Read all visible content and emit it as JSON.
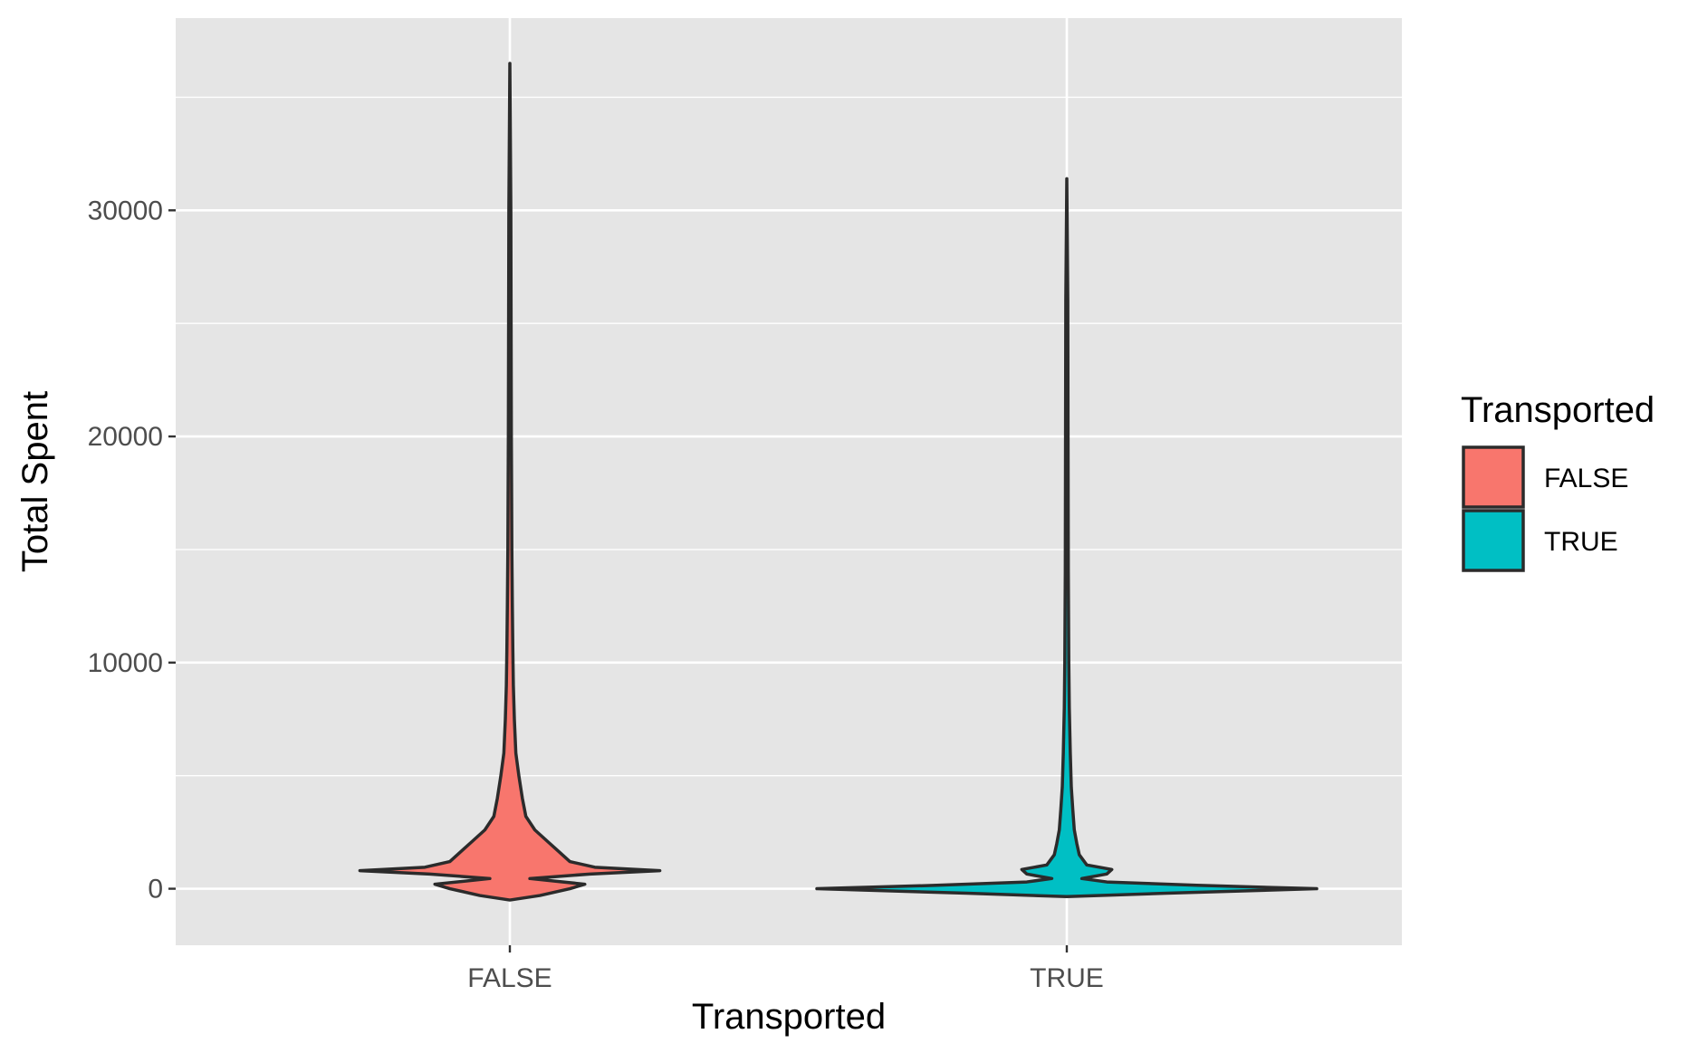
{
  "chart_data": {
    "type": "violin",
    "xlabel": "Transported",
    "ylabel": "Total Spent",
    "categories": [
      "FALSE",
      "TRUE"
    ],
    "ylim": [
      -2500,
      38500
    ],
    "yticks": [
      0,
      10000,
      20000,
      30000
    ],
    "ytick_labels": [
      "0",
      "10000",
      "20000",
      "30000"
    ],
    "grid": true,
    "legend": {
      "title": "Transported",
      "placement": "right",
      "entries": [
        "FALSE",
        "TRUE"
      ]
    },
    "colors": {
      "panel": "#e5e5e5",
      "grid": "#ffffff",
      "outline": "#2b2b2b",
      "FALSE": "#f8766d",
      "TRUE": "#00bfc4"
    },
    "series": [
      {
        "category": "FALSE",
        "range": [
          0,
          36500
        ],
        "density": [
          [
            -500,
            0.0
          ],
          [
            -300,
            0.06
          ],
          [
            0,
            0.12
          ],
          [
            200,
            0.15
          ],
          [
            450,
            0.04
          ],
          [
            650,
            0.16
          ],
          [
            800,
            0.3
          ],
          [
            950,
            0.17
          ],
          [
            1200,
            0.12
          ],
          [
            1600,
            0.1
          ],
          [
            2100,
            0.075
          ],
          [
            2600,
            0.05
          ],
          [
            3200,
            0.032
          ],
          [
            4000,
            0.025
          ],
          [
            5000,
            0.018
          ],
          [
            6000,
            0.012
          ],
          [
            7500,
            0.009
          ],
          [
            9000,
            0.007
          ],
          [
            10500,
            0.006
          ],
          [
            12500,
            0.005
          ],
          [
            15000,
            0.004
          ],
          [
            20000,
            0.003
          ],
          [
            25000,
            0.0025
          ],
          [
            30000,
            0.002
          ],
          [
            36500,
            0.0
          ]
        ]
      },
      {
        "category": "TRUE",
        "range": [
          0,
          31400
        ],
        "density": [
          [
            -350,
            0.0
          ],
          [
            -200,
            0.2
          ],
          [
            0,
            0.5
          ],
          [
            150,
            0.26
          ],
          [
            300,
            0.08
          ],
          [
            450,
            0.03
          ],
          [
            650,
            0.08
          ],
          [
            850,
            0.09
          ],
          [
            1050,
            0.04
          ],
          [
            1500,
            0.025
          ],
          [
            2000,
            0.02
          ],
          [
            2600,
            0.015
          ],
          [
            3500,
            0.012
          ],
          [
            4500,
            0.009
          ],
          [
            6000,
            0.007
          ],
          [
            8000,
            0.005
          ],
          [
            10000,
            0.004
          ],
          [
            14000,
            0.003
          ],
          [
            20000,
            0.0025
          ],
          [
            26000,
            0.002
          ],
          [
            31400,
            0.0
          ]
        ]
      }
    ]
  }
}
